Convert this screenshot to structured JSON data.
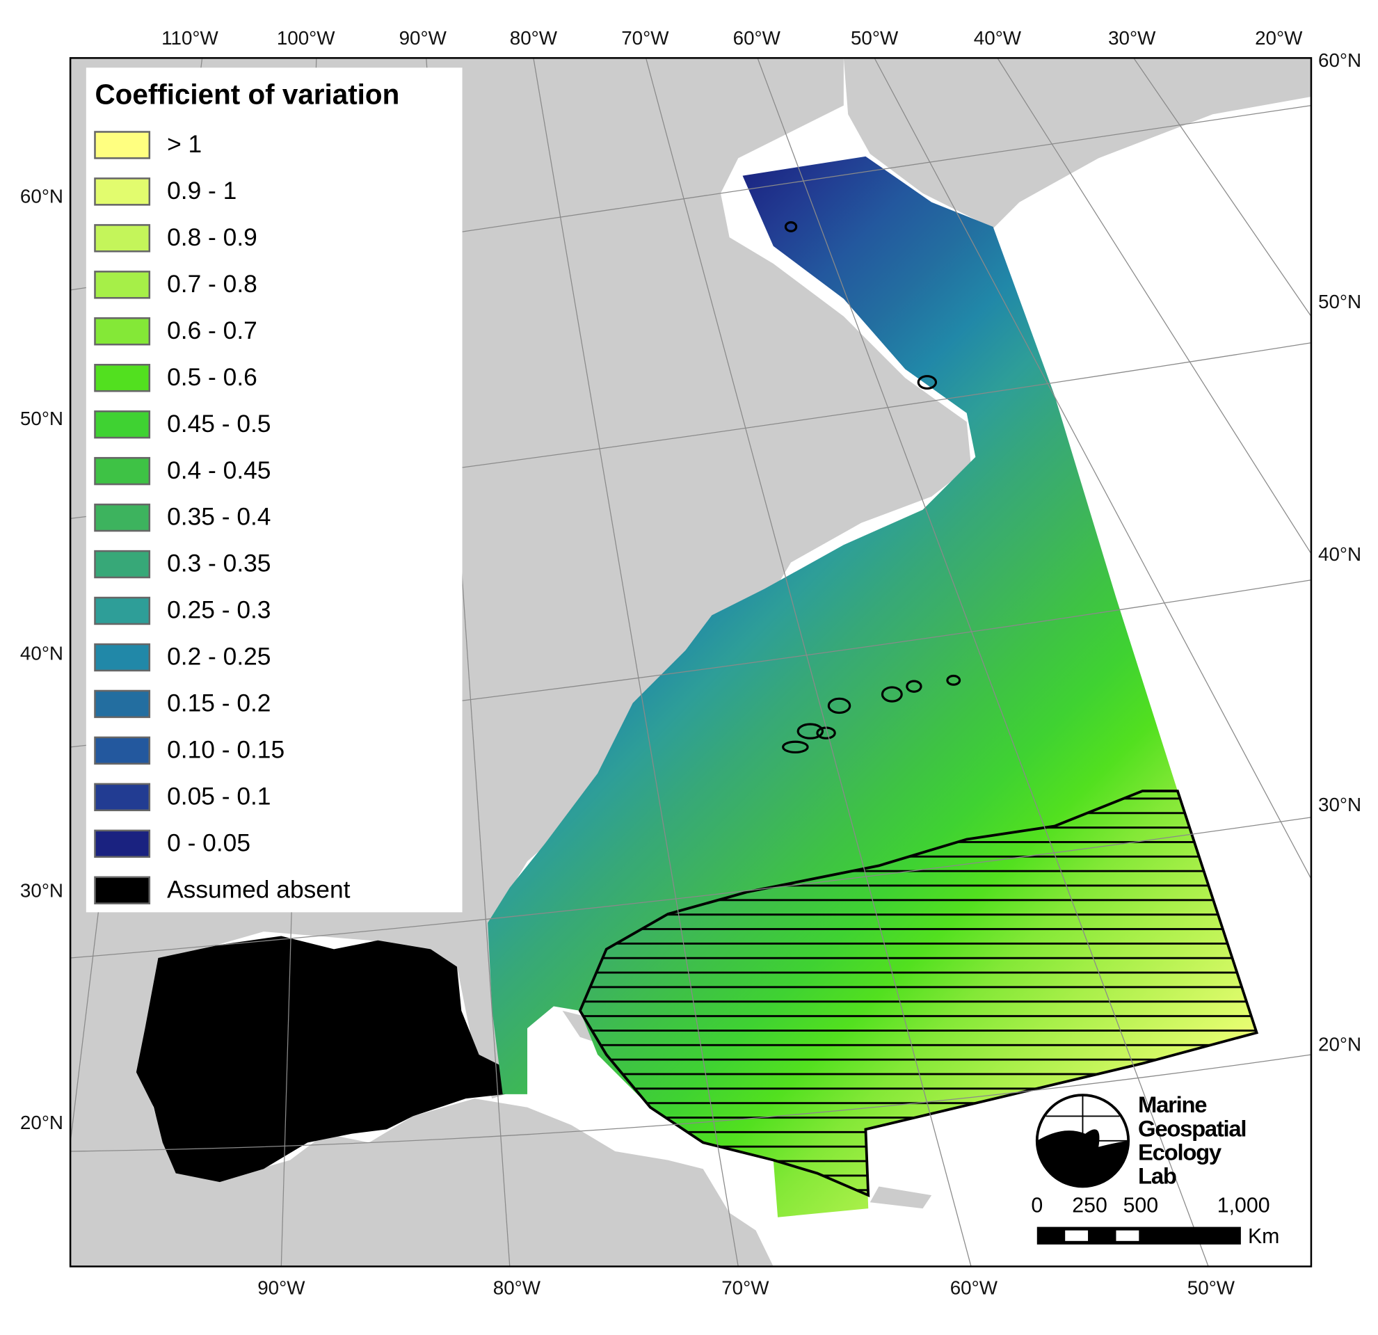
{
  "legend": {
    "title": "Coefficient of variation",
    "items": [
      {
        "label": "> 1",
        "color": "#ffff80"
      },
      {
        "label": "0.9 - 1",
        "color": "#e2fc6e"
      },
      {
        "label": "0.8 - 0.9",
        "color": "#c4f55a"
      },
      {
        "label": "0.7 - 0.8",
        "color": "#a6ef48"
      },
      {
        "label": "0.6 - 0.7",
        "color": "#84e837"
      },
      {
        "label": "0.5 - 0.6",
        "color": "#52e01f"
      },
      {
        "label": "0.45 - 0.5",
        "color": "#3fd232"
      },
      {
        "label": "0.4 - 0.45",
        "color": "#3ec245"
      },
      {
        "label": "0.35 - 0.4",
        "color": "#3db35e"
      },
      {
        "label": "0.3 - 0.35",
        "color": "#37a878"
      },
      {
        "label": "0.25 - 0.3",
        "color": "#2e9e98"
      },
      {
        "label": "0.2 - 0.25",
        "color": "#2188a8"
      },
      {
        "label": "0.15 - 0.2",
        "color": "#236ea0"
      },
      {
        "label": "0.10 - 0.15",
        "color": "#23589e"
      },
      {
        "label": "0.05 - 0.1",
        "color": "#223c92"
      },
      {
        "label": "0 - 0.05",
        "color": "#1a2280"
      },
      {
        "label": "Assumed absent",
        "color": "#000000"
      }
    ]
  },
  "axes": {
    "top": [
      "110°W",
      "100°W",
      "90°W",
      "80°W",
      "70°W",
      "60°W",
      "50°W",
      "40°W",
      "30°W",
      "20°W"
    ],
    "bottom": [
      "90°W",
      "80°W",
      "70°W",
      "60°W",
      "50°W"
    ],
    "left": [
      "60°N",
      "50°N",
      "40°N",
      "30°N",
      "20°N"
    ],
    "right": [
      "60°N",
      "50°N",
      "40°N",
      "30°N",
      "20°N"
    ]
  },
  "logo": {
    "lines": [
      "Marine",
      "Geospatial",
      "Ecology",
      "Lab"
    ]
  },
  "scale_bar": {
    "labels": [
      "0",
      "250",
      "500",
      "1,000"
    ],
    "unit": "Km"
  }
}
